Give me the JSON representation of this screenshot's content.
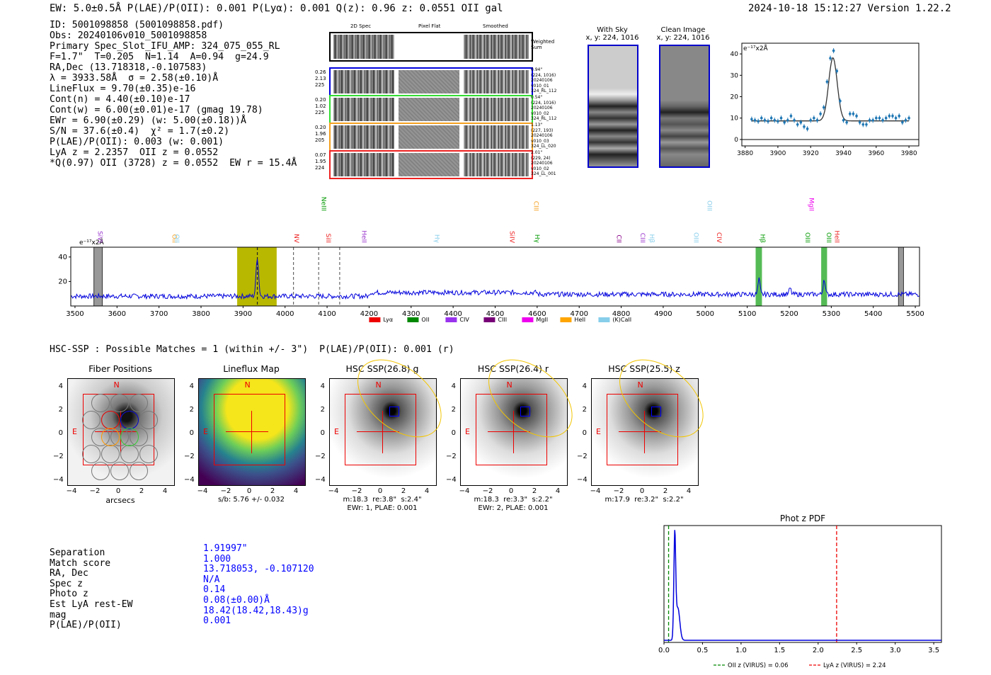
{
  "header": {
    "left": "EW: 5.0±0.5Å  P(LAE)/P(OII): 0.001  P(Lyα): 0.001  Q(z): 0.96  z: 0.0551  OII   gal",
    "right": "2024-10-18 15:12:27  Version 1.22.2"
  },
  "info_lines": [
    "ID: 5001098858 (5001098858.pdf)",
    "Obs: 20240106v010_5001098858",
    "Primary Spec_Slot_IFU_AMP: 324_075_055_RL",
    "F=1.7\"  T=0.205  N=1.14  A=0.94  g=24.9",
    "RA,Dec (13.718318,-0.107583)",
    "λ = 3933.58Å  σ = 2.58(±0.10)Å",
    "LineFlux = 9.70(±0.35)e-16",
    "Cont(n) = 4.40(±0.10)e-17",
    "Cont(w) = 6.00(±0.01)e-17 (gmag 19.78)",
    "EWr = 6.90(±0.29) (w: 5.00(±0.18))Å",
    "S/N = 37.6(±0.4)  χ² = 1.7(±0.2)",
    "P(LAE)/P(OII): 0.003 (w: 0.001)",
    "LyA z = 2.2357  OII z = 0.0552",
    "*Q(0.97) OII (3728) z = 0.0552  EW r = 15.4Å"
  ],
  "cutout_panel": {
    "col_labels": [
      "2D Spec",
      "Pixel Flat",
      "Smoothed"
    ],
    "weighted_sum_label": "Weighted Sum",
    "rows": [
      {
        "left": [
          "0.26",
          "2.13",
          "225"
        ],
        "right": [
          "0.94\"",
          "(224, 1016)",
          "20240106",
          "v010_01",
          "324_RL_112"
        ],
        "color": "#0000dd"
      },
      {
        "left": [
          "0.20",
          "1.02",
          "225"
        ],
        "right": [
          "0.54\"",
          "(224, 1016)",
          "20240106",
          "v010_02",
          "324_RL_112"
        ],
        "color": "#33dd33"
      },
      {
        "left": [
          "0.20",
          "1.96",
          "205"
        ],
        "right": [
          "1.13\"",
          "(227, 193)",
          "20240106",
          "v010_03",
          "324_LL_020"
        ],
        "color": "#f4a020"
      },
      {
        "left": [
          "0.07",
          "1.95",
          "224"
        ],
        "right": [
          "2.01\"",
          "(229, 24)",
          "20240106",
          "v010_02",
          "324_LL_001"
        ],
        "color": "#ee2222"
      }
    ]
  },
  "with_sky": {
    "title": "With Sky",
    "sub": "x, y: 224, 1016"
  },
  "clean_image": {
    "title": "Clean Image",
    "sub": "x, y: 224, 1016"
  },
  "line_fit_chart": {
    "ylabel": "e⁻¹⁷x2Å",
    "chart_data": {
      "type": "line",
      "x_ticks": [
        3880,
        3900,
        3920,
        3940,
        3960,
        3980
      ],
      "y_ticks": [
        0,
        10,
        20,
        30,
        40
      ],
      "xlim": [
        3878,
        3986
      ],
      "ylim": [
        -3,
        45
      ],
      "points": [
        [
          3884,
          9.5
        ],
        [
          3886,
          9
        ],
        [
          3888,
          8.5
        ],
        [
          3890,
          10
        ],
        [
          3892,
          9
        ],
        [
          3894,
          8.5
        ],
        [
          3896,
          10
        ],
        [
          3898,
          9
        ],
        [
          3900,
          8.5
        ],
        [
          3902,
          10
        ],
        [
          3904,
          8
        ],
        [
          3906,
          9
        ],
        [
          3908,
          11
        ],
        [
          3910,
          9
        ],
        [
          3912,
          7
        ],
        [
          3914,
          8
        ],
        [
          3916,
          6
        ],
        [
          3918,
          5
        ],
        [
          3920,
          9
        ],
        [
          3922,
          10
        ],
        [
          3924,
          9
        ],
        [
          3926,
          12
        ],
        [
          3928,
          15
        ],
        [
          3930,
          27
        ],
        [
          3932,
          38
        ],
        [
          3934,
          41.5
        ],
        [
          3936,
          32
        ],
        [
          3938,
          18
        ],
        [
          3940,
          9
        ],
        [
          3942,
          8
        ],
        [
          3944,
          12
        ],
        [
          3946,
          12
        ],
        [
          3948,
          11
        ],
        [
          3950,
          8
        ],
        [
          3952,
          7
        ],
        [
          3954,
          7
        ],
        [
          3956,
          9
        ],
        [
          3958,
          9
        ],
        [
          3960,
          10
        ],
        [
          3962,
          10
        ],
        [
          3964,
          9
        ],
        [
          3966,
          10
        ],
        [
          3968,
          11
        ],
        [
          3970,
          11
        ],
        [
          3972,
          10
        ],
        [
          3974,
          11
        ],
        [
          3976,
          8
        ],
        [
          3978,
          9
        ],
        [
          3980,
          10
        ]
      ]
    }
  },
  "full_spectrum": {
    "ylabel": "e⁻¹⁷x2Å",
    "chart_data": {
      "type": "line",
      "x_ticks": [
        3500,
        3600,
        3700,
        3800,
        3900,
        4000,
        4100,
        4200,
        4300,
        4400,
        4500,
        4600,
        4700,
        4800,
        4900,
        5000,
        5100,
        5200,
        5300,
        5400,
        5500
      ],
      "y_ticks": [
        20,
        40
      ],
      "xlim": [
        3490,
        5510
      ],
      "ylim": [
        0,
        48
      ]
    },
    "line_markers": [
      {
        "label": "SiVI",
        "x": 3550,
        "color": "#9933cc",
        "row": 0
      },
      {
        "label": "OII",
        "x": 3727,
        "color": "#f4a020",
        "row": 0
      },
      {
        "label": "OII",
        "x": 3733,
        "color": "#87ceeb",
        "row": 0
      },
      {
        "label": "NV",
        "x": 4017,
        "color": "#ee2222",
        "row": 0
      },
      {
        "label": "NeIII",
        "x": 4082,
        "color": "#009900",
        "row": 2
      },
      {
        "label": "SiII",
        "x": 4093,
        "color": "#ee2222",
        "row": 0
      },
      {
        "label": "HeII",
        "x": 4178,
        "color": "#9933cc",
        "row": 0
      },
      {
        "label": "Hγ",
        "x": 4352,
        "color": "#87ceeb",
        "row": 0
      },
      {
        "label": "SiIV",
        "x": 4530,
        "color": "#ee2222",
        "row": 0
      },
      {
        "label": "CIII",
        "x": 4588,
        "color": "#f4a020",
        "row": 2
      },
      {
        "label": "Hγ",
        "x": 4590,
        "color": "#009900",
        "row": 0
      },
      {
        "label": "CII",
        "x": 4785,
        "color": "#880088",
        "row": 0
      },
      {
        "label": "CIII",
        "x": 4841,
        "color": "#9933cc",
        "row": 0
      },
      {
        "label": "Hβ",
        "x": 4863,
        "color": "#87ceeb",
        "row": 0
      },
      {
        "label": "OIII",
        "x": 4968,
        "color": "#87ceeb",
        "row": 0
      },
      {
        "label": "OIII",
        "x": 5000,
        "color": "#87ceeb",
        "row": 2
      },
      {
        "label": "CIV",
        "x": 5023,
        "color": "#ee2222",
        "row": 0
      },
      {
        "label": "Hβ",
        "x": 5127,
        "color": "#009900",
        "row": 0
      },
      {
        "label": "OIII",
        "x": 5234,
        "color": "#009900",
        "row": 0
      },
      {
        "label": "MgII",
        "x": 5243,
        "color": "#ee00ee",
        "row": 2
      },
      {
        "label": "OIII",
        "x": 5284,
        "color": "#009900",
        "row": 0
      },
      {
        "label": "HeII",
        "x": 5304,
        "color": "#ee2222",
        "row": 0
      }
    ],
    "legend": [
      {
        "label": "Lyα",
        "color": "#ee0000"
      },
      {
        "label": "OII",
        "color": "#008800"
      },
      {
        "label": "CIV",
        "color": "#9933ee"
      },
      {
        "label": "CIII",
        "color": "#770077"
      },
      {
        "label": "MgII",
        "color": "#ee00ee"
      },
      {
        "label": "HeII",
        "color": "#ffa500"
      },
      {
        "label": "(K)CaII",
        "color": "#87ceeb"
      }
    ]
  },
  "hsc_line": "HSC-SSP : Possible Matches = 1 (within +/- 3\")  P(LAE)/P(OII): 0.001 (r)",
  "image_panels": [
    {
      "title": "Fiber Positions",
      "xlabel": "arcsecs",
      "caption": ""
    },
    {
      "title": "Lineflux Map",
      "xlabel": "",
      "caption": "s/b: 5.76 +/- 0.032"
    },
    {
      "title": "HSC SSP(26.8) g",
      "xlabel": "",
      "caption": "m:18.3  re:3.8\"  s:2.4\"",
      "caption2": "EWr: 1, PLAE: 0.001"
    },
    {
      "title": "HSC SSP(26.4) r",
      "xlabel": "",
      "caption": "m:18.3  re:3.3\"  s:2.2\"",
      "caption2": "EWr: 2, PLAE: 0.001"
    },
    {
      "title": "HSC SSP(25.5) z",
      "xlabel": "",
      "caption": "m:17.9  re:3.2\"  s:2.2\"",
      "caption2": ""
    }
  ],
  "panel_axis": {
    "ticks": [
      "4",
      "2",
      "0",
      "−2",
      "−4"
    ],
    "xticks": [
      "−4",
      "−2",
      "0",
      "2",
      "4"
    ],
    "north": "N",
    "east": "E"
  },
  "match_table": {
    "keys": [
      "Separation",
      "Match score",
      "RA, Dec",
      "Spec z",
      "Photo z",
      "Est LyA rest-EW",
      "mag",
      "P(LAE)/P(OII)"
    ],
    "values": [
      "1.91997\"",
      "1.000",
      "13.718053, -0.107120",
      "N/A",
      "0.14",
      "0.08(±0.00)Å",
      "18.42(18.42,18.43)g",
      "0.001"
    ]
  },
  "phot_z": {
    "title": "Phot z PDF",
    "legend": [
      {
        "label": "OII z (VIRUS) = 0.06",
        "color": "#008800"
      },
      {
        "label": "LyA z (VIRUS) = 2.24",
        "color": "#ee0000"
      }
    ],
    "chart_data": {
      "type": "line",
      "x_ticks": [
        0.0,
        0.5,
        1.0,
        1.5,
        2.0,
        2.5,
        3.0,
        3.5
      ],
      "xlim": [
        0,
        3.6
      ],
      "oii_z": 0.06,
      "lya_z": 2.24,
      "peak_z": 0.14
    }
  }
}
